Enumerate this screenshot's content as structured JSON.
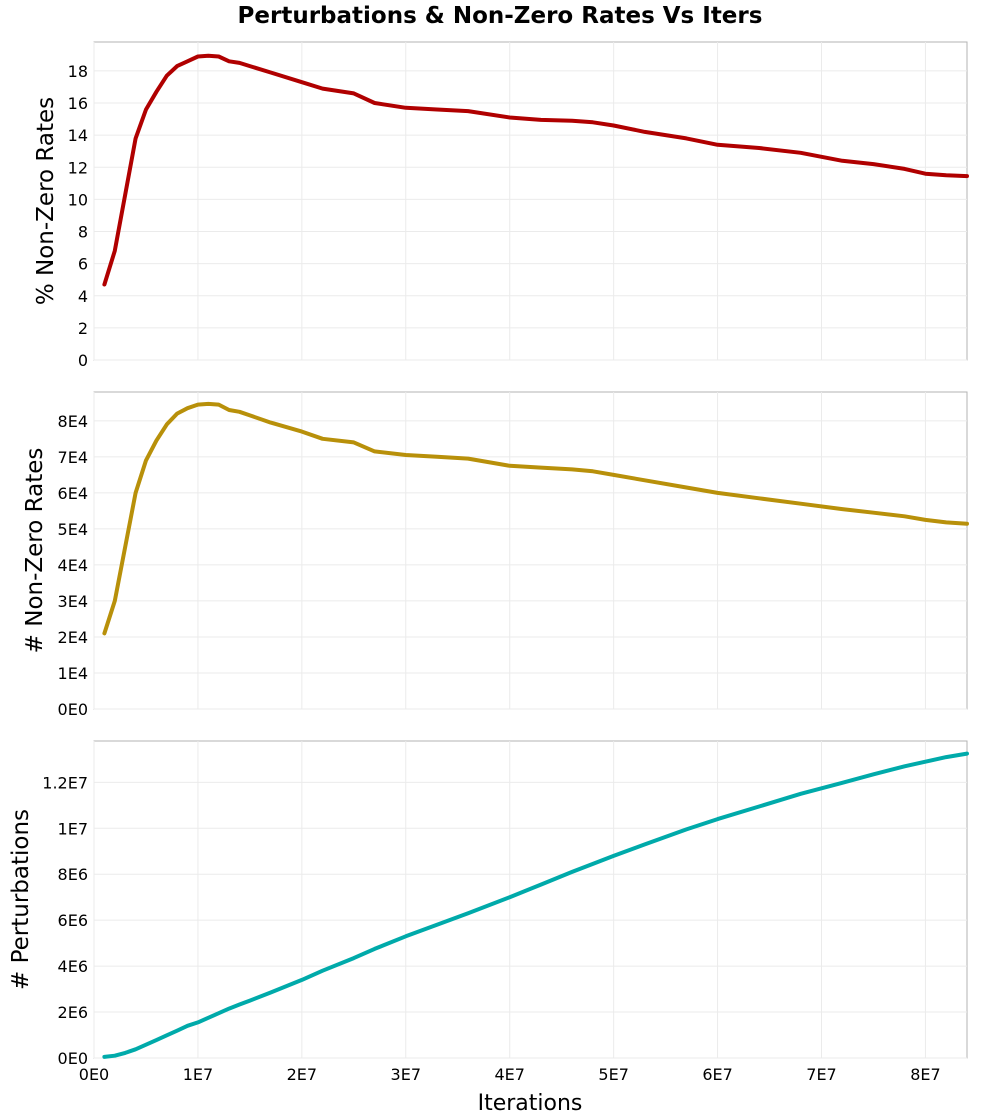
{
  "chart_data": {
    "type": "line",
    "title": "Perturbations & Non-Zero Rates Vs Iters",
    "xlabel": "Iterations",
    "x_ticks": [
      "0E0",
      "1E7",
      "2E7",
      "3E7",
      "4E7",
      "5E7",
      "6E7",
      "7E7",
      "8E7"
    ],
    "xlim": [
      0,
      84000000
    ],
    "grid": true,
    "legend": "none",
    "x": [
      1000000,
      2000000,
      3000000,
      4000000,
      5000000,
      6000000,
      7000000,
      8000000,
      9000000,
      10000000,
      11000000,
      12000000,
      13000000,
      14000000,
      15000000,
      17000000,
      20000000,
      22000000,
      25000000,
      27000000,
      30000000,
      33000000,
      36000000,
      40000000,
      43000000,
      46000000,
      48000000,
      50000000,
      53000000,
      57000000,
      60000000,
      64000000,
      68000000,
      72000000,
      75000000,
      78000000,
      80000000,
      82000000,
      84000000
    ],
    "panels": [
      {
        "ylabel": "% Non-Zero Rates",
        "ylim": [
          0,
          19.8
        ],
        "y_ticks": [
          "0",
          "2",
          "4",
          "6",
          "8",
          "10",
          "12",
          "14",
          "16",
          "18"
        ],
        "color": "#b00000",
        "series": [
          {
            "values": [
              4.7,
              6.8,
              10.3,
              13.8,
              15.6,
              16.7,
              17.7,
              18.3,
              18.6,
              18.9,
              18.95,
              18.9,
              18.6,
              18.5,
              18.3,
              17.9,
              17.3,
              16.9,
              16.6,
              16.0,
              15.7,
              15.6,
              15.5,
              15.1,
              14.95,
              14.9,
              14.8,
              14.6,
              14.2,
              13.8,
              13.4,
              13.2,
              12.9,
              12.4,
              12.2,
              11.9,
              11.6,
              11.5,
              11.45
            ]
          }
        ]
      },
      {
        "ylabel": "# Non-Zero Rates",
        "ylim": [
          0,
          88000
        ],
        "y_ticks": [
          "0E0",
          "1E4",
          "2E4",
          "3E4",
          "4E4",
          "5E4",
          "6E4",
          "7E4",
          "8E4"
        ],
        "color": "#b8900a",
        "series": [
          {
            "values": [
              21000,
              30000,
              45000,
              60000,
              69000,
              74500,
              79000,
              82000,
              83500,
              84500,
              84700,
              84500,
              83000,
              82500,
              81500,
              79500,
              77000,
              75000,
              74000,
              71500,
              70500,
              70000,
              69500,
              67500,
              67000,
              66500,
              66000,
              65000,
              63500,
              61500,
              60000,
              58500,
              57000,
              55500,
              54500,
              53500,
              52500,
              51800,
              51400
            ]
          }
        ]
      },
      {
        "ylabel": "# Perturbations",
        "ylim": [
          0,
          13800000
        ],
        "y_ticks": [
          "0E0",
          "2E6",
          "4E6",
          "6E6",
          "8E6",
          "1E7",
          "1.2E7"
        ],
        "color": "#00aaaa",
        "series": [
          {
            "values": [
              50000,
              100000,
              220000,
              380000,
              580000,
              780000,
              990000,
              1190000,
              1400000,
              1550000,
              1750000,
              1950000,
              2150000,
              2330000,
              2500000,
              2850000,
              3400000,
              3800000,
              4350000,
              4750000,
              5300000,
              5800000,
              6300000,
              7000000,
              7550000,
              8100000,
              8450000,
              8800000,
              9300000,
              9950000,
              10400000,
              10950000,
              11500000,
              11980000,
              12350000,
              12700000,
              12900000,
              13100000,
              13250000
            ]
          }
        ]
      }
    ]
  }
}
